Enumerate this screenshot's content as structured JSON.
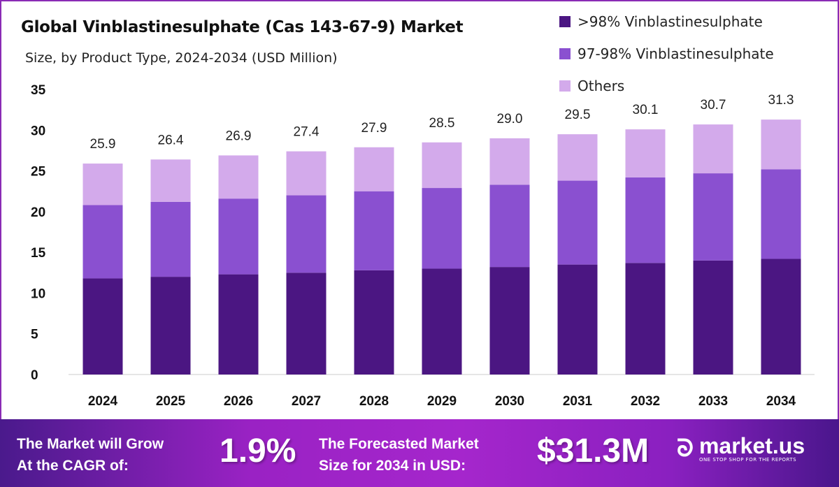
{
  "chart_data": {
    "type": "bar",
    "stacked": true,
    "title": "Global Vinblastinesulphate (Cas 143-67-9) Market",
    "subtitle": "Size, by Product Type, 2024-2034 (USD Million)",
    "categories": [
      "2024",
      "2025",
      "2026",
      "2027",
      "2028",
      "2029",
      "2030",
      "2031",
      "2032",
      "2033",
      "2034"
    ],
    "series": [
      {
        "name": ">98% Vinblastinesulphate",
        "color": "#4b1682",
        "values": [
          11.8,
          12.0,
          12.3,
          12.5,
          12.8,
          13.0,
          13.2,
          13.5,
          13.7,
          14.0,
          14.2
        ]
      },
      {
        "name": "97-98% Vinblastinesulphate",
        "color": "#8a50d0",
        "values": [
          9.0,
          9.2,
          9.3,
          9.5,
          9.7,
          9.9,
          10.1,
          10.3,
          10.5,
          10.7,
          11.0
        ]
      },
      {
        "name": "Others",
        "color": "#d3aaeb",
        "values": [
          5.1,
          5.2,
          5.3,
          5.4,
          5.4,
          5.6,
          5.7,
          5.7,
          5.9,
          6.0,
          6.1
        ]
      }
    ],
    "totals": [
      "25.9",
      "26.4",
      "26.9",
      "27.4",
      "27.9",
      "28.5",
      "29.0",
      "29.5",
      "30.1",
      "30.7",
      "31.3"
    ],
    "ylim": [
      0,
      35
    ],
    "yticks": [
      "0",
      "5",
      "10",
      "15",
      "20",
      "25",
      "30",
      "35"
    ],
    "xlabel": "",
    "ylabel": "",
    "grid": false,
    "legend": "top-right"
  },
  "footer": {
    "cagr_label_1": "The Market will Grow",
    "cagr_label_2": "At the CAGR of:",
    "cagr_value": "1.9%",
    "forecast_label_1": "The Forecasted Market",
    "forecast_label_2": "Size for 2034 in USD:",
    "forecast_value": "$31.3M",
    "brand": "market.us",
    "tagline": "ONE STOP SHOP FOR THE REPORTS"
  }
}
